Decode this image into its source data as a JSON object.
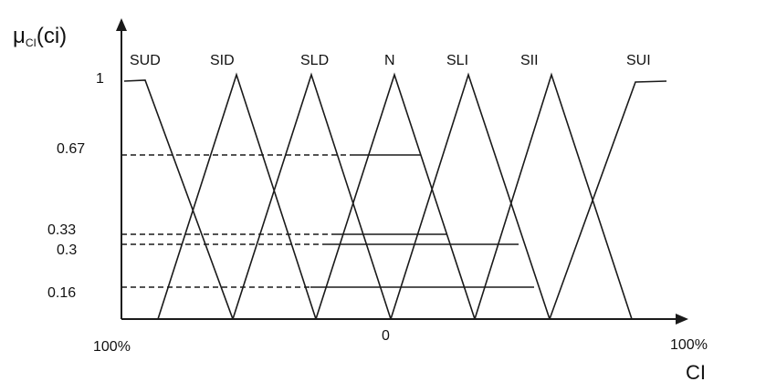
{
  "diagram": {
    "y_axis_label_main": "μ",
    "y_axis_label_sub": "CI",
    "y_axis_label_arg": "(ci)",
    "x_axis_label": "CI",
    "x_left_label": "100%",
    "x_center_label": "0",
    "x_right_label": "100%",
    "y_levels": [
      {
        "label": "1",
        "value": 1.0
      },
      {
        "label": "0.67",
        "value": 0.67
      },
      {
        "label": "0.33",
        "value": 0.33
      },
      {
        "label": "0.3",
        "value": 0.3
      },
      {
        "label": "0.16",
        "value": 0.16
      }
    ],
    "membership_sets": [
      "SUD",
      "SID",
      "SLD",
      "N",
      "SLI",
      "SII",
      "SUI"
    ]
  }
}
